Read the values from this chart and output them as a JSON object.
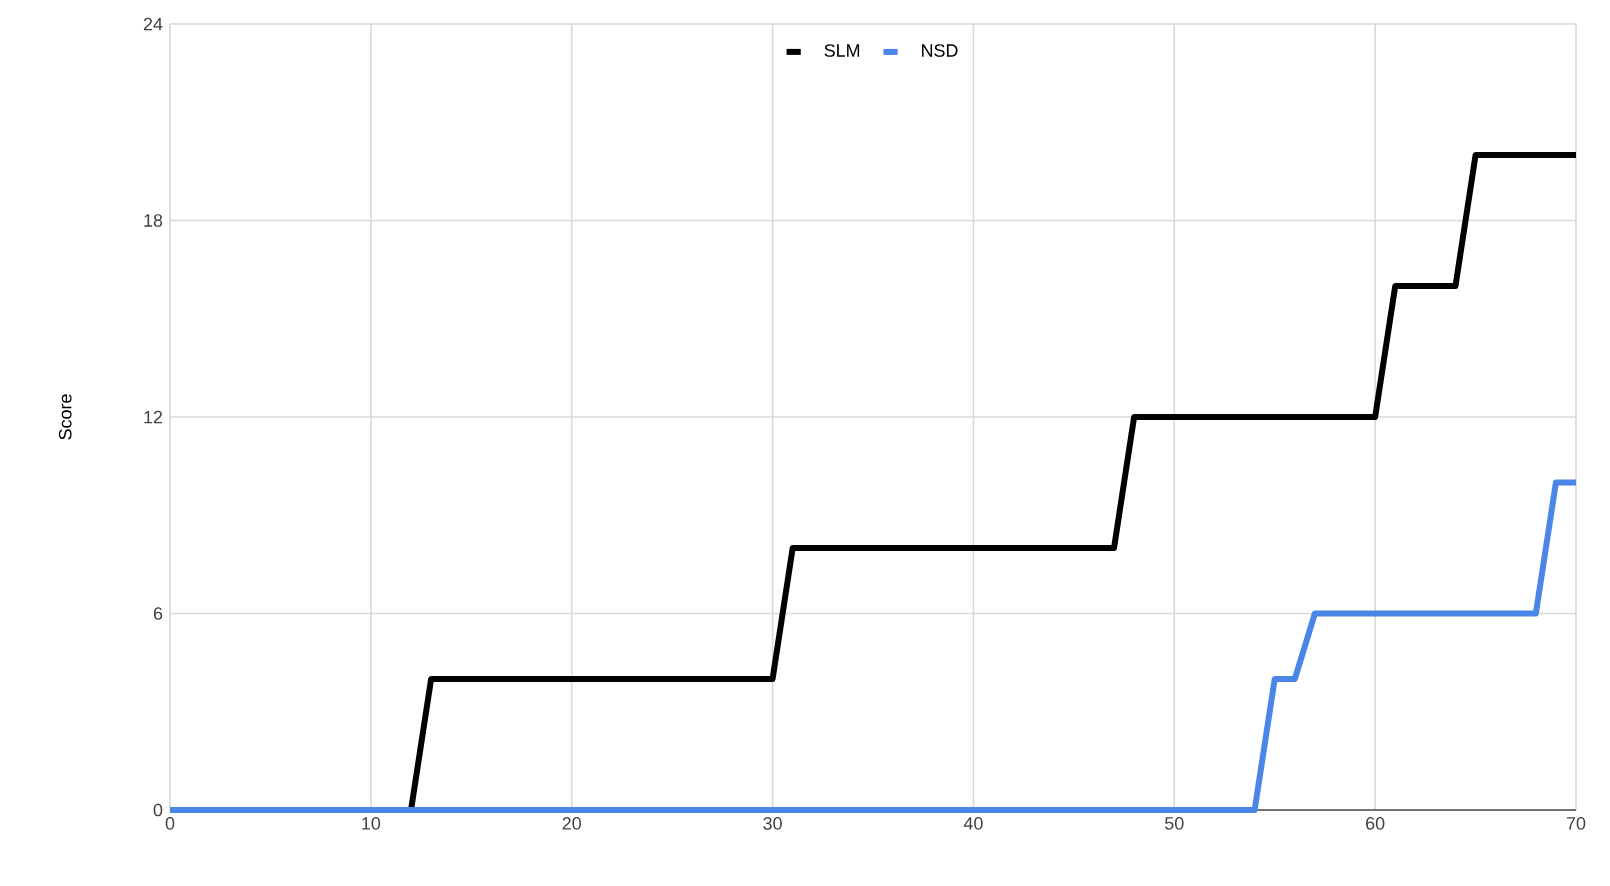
{
  "chart_data": {
    "type": "line",
    "ylabel": "Score",
    "xlim": [
      0,
      70
    ],
    "xticks": [
      0,
      10,
      20,
      30,
      40,
      50,
      60,
      70
    ],
    "ylim": [
      0,
      24
    ],
    "yticks": [
      0,
      6,
      12,
      18,
      24
    ],
    "grid": true,
    "legend": "top",
    "marker": "none",
    "line_style": "solid",
    "series": [
      {
        "name": "SLM",
        "color": "#000000",
        "x": [
          0,
          12,
          13,
          30,
          31,
          47,
          48,
          60,
          61,
          64,
          65,
          70
        ],
        "values": [
          0,
          0,
          4,
          4,
          8,
          8,
          12,
          12,
          16,
          16,
          20,
          20
        ]
      },
      {
        "name": "NSD",
        "color": "#4a86e8",
        "x": [
          0,
          54,
          55,
          56,
          57,
          68,
          69,
          70
        ],
        "values": [
          0,
          0,
          4,
          4,
          6,
          6,
          10,
          10
        ]
      }
    ]
  }
}
